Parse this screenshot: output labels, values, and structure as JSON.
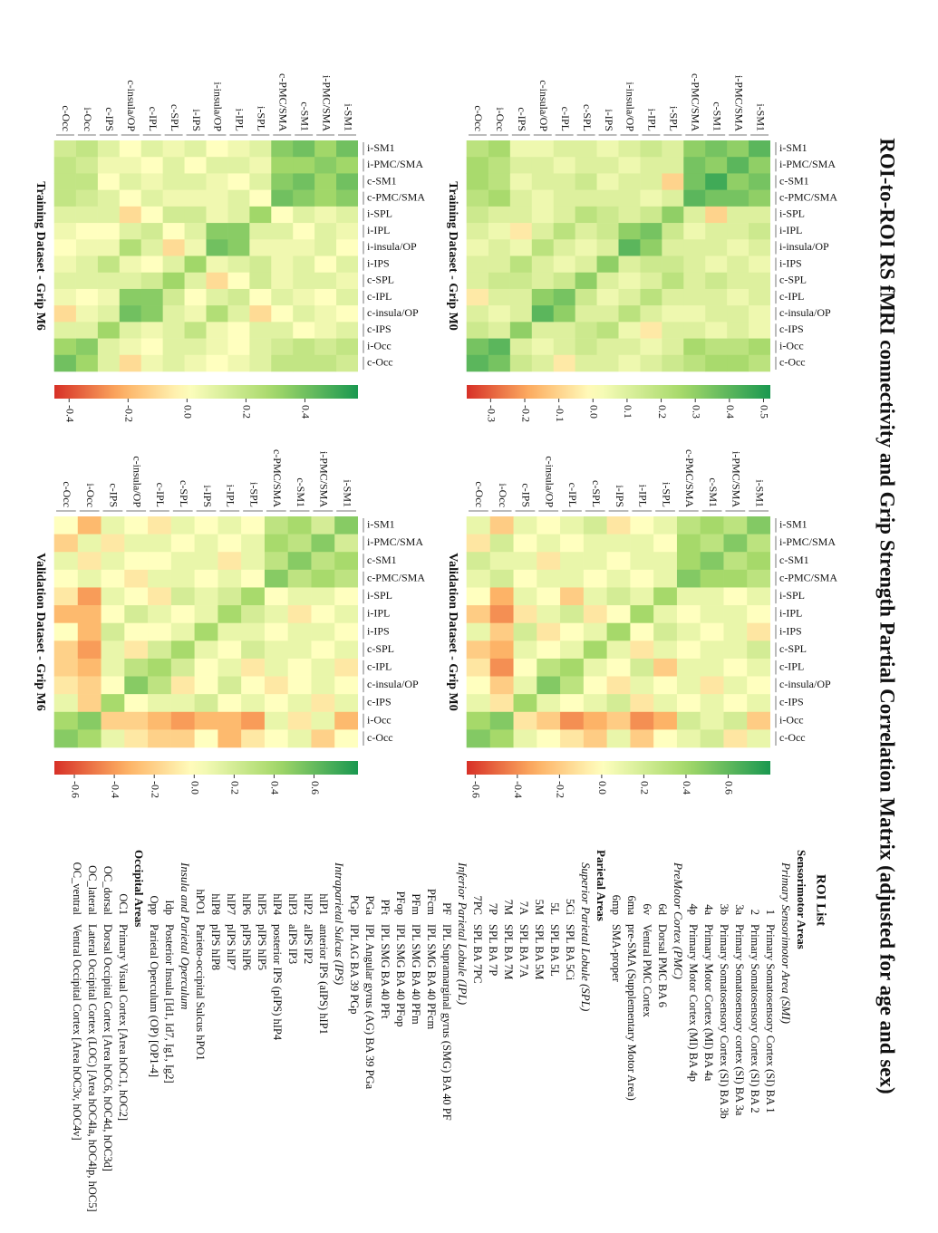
{
  "title": "ROI-to-ROI RS fMRI connectivity and Grip Strength Partial Correlation Matrix (adjusted for age and sex)",
  "chart_data": [
    {
      "type": "heatmap",
      "title": "Training Dataset - Grip M0",
      "labels": [
        "i-SM1",
        "i-PMC/SMA",
        "c-SM1",
        "c-PMC/SMA",
        "i-SPL",
        "i-IPL",
        "i-insula/OP",
        "i-IPS",
        "c-SPL",
        "c-IPL",
        "c-insula/OP",
        "c-IPS",
        "i-Occ",
        "c-Occ"
      ],
      "values": [
        [
          0.4,
          0.3,
          0.35,
          0.3,
          0.1,
          0.15,
          0.1,
          0.05,
          0.1,
          0.1,
          0.05,
          0.05,
          0.25,
          0.2
        ],
        [
          0.3,
          0.4,
          0.3,
          0.35,
          0.1,
          0.1,
          0.05,
          0.1,
          0.1,
          0.05,
          0.1,
          0.1,
          0.2,
          0.25
        ],
        [
          0.35,
          0.3,
          0.45,
          0.35,
          -0.1,
          0.1,
          0.1,
          0.05,
          0.15,
          0.1,
          0.1,
          0.05,
          0.2,
          0.25
        ],
        [
          0.3,
          0.35,
          0.35,
          0.4,
          0.1,
          0.05,
          0.1,
          0.1,
          0.1,
          0.1,
          0.05,
          0.1,
          0.25,
          0.2
        ],
        [
          0.1,
          0.1,
          -0.1,
          0.1,
          0.3,
          0.15,
          0.1,
          0.15,
          0.2,
          0.1,
          0.05,
          0.1,
          0.1,
          0.15
        ],
        [
          0.15,
          0.1,
          0.1,
          0.05,
          0.15,
          0.35,
          0.3,
          0.15,
          0.1,
          0.2,
          0.1,
          -0.05,
          0.05,
          0.1
        ],
        [
          0.1,
          0.05,
          0.1,
          0.1,
          0.1,
          0.3,
          0.4,
          0.1,
          0.05,
          0.1,
          0.2,
          0.05,
          0.1,
          0.05
        ],
        [
          0.05,
          0.1,
          0.05,
          0.1,
          0.15,
          0.15,
          0.1,
          0.3,
          0.1,
          0.05,
          0.1,
          0.2,
          0.1,
          0.1
        ],
        [
          0.1,
          0.1,
          0.15,
          0.1,
          0.2,
          0.1,
          0.05,
          0.1,
          0.3,
          0.15,
          0.1,
          0.15,
          0.15,
          0.1
        ],
        [
          0.1,
          0.05,
          0.1,
          0.1,
          0.1,
          0.2,
          0.1,
          0.05,
          0.15,
          0.35,
          0.3,
          0.1,
          0.1,
          -0.05
        ],
        [
          0.05,
          0.1,
          0.1,
          0.05,
          0.05,
          0.1,
          0.2,
          0.1,
          0.1,
          0.3,
          0.4,
          0.1,
          0.05,
          0.1
        ],
        [
          0.05,
          0.1,
          0.05,
          0.1,
          0.1,
          -0.05,
          0.05,
          0.2,
          0.15,
          0.1,
          0.1,
          0.3,
          0.1,
          0.15
        ],
        [
          0.25,
          0.2,
          0.2,
          0.25,
          0.1,
          0.05,
          0.1,
          0.1,
          0.15,
          0.1,
          0.05,
          0.1,
          0.4,
          0.35
        ],
        [
          0.2,
          0.25,
          0.25,
          0.2,
          0.15,
          0.1,
          0.05,
          0.1,
          0.1,
          -0.05,
          0.1,
          0.15,
          0.35,
          0.4
        ]
      ],
      "clim": [
        -0.37,
        0.52
      ],
      "cticks": [
        0.5,
        0.4,
        0.3,
        0.2,
        0.1,
        {
          "value": 0,
          "label": "0.0"
        },
        -0.1,
        -0.2,
        -0.3
      ]
    },
    {
      "type": "heatmap",
      "title": "Training Dataset - Grip M6",
      "labels": [
        "i-SM1",
        "i-PMC/SMA",
        "c-SM1",
        "c-PMC/SMA",
        "i-SPL",
        "i-IPL",
        "i-insula/OP",
        "i-IPS",
        "c-SPL",
        "c-IPL",
        "c-insula/OP",
        "c-IPS",
        "i-Occ",
        "c-Occ"
      ],
      "values": [
        [
          0.4,
          0.3,
          0.4,
          0.35,
          0.1,
          0.05,
          0.0,
          0.1,
          0.05,
          0.1,
          0.0,
          0.1,
          0.2,
          0.15
        ],
        [
          0.3,
          0.35,
          0.3,
          0.3,
          0.05,
          0.1,
          0.1,
          0.0,
          0.1,
          0.0,
          0.05,
          0.05,
          0.15,
          0.2
        ],
        [
          0.4,
          0.3,
          0.4,
          0.35,
          0.1,
          0.0,
          0.05,
          0.1,
          0.1,
          0.05,
          0.1,
          0.0,
          0.2,
          0.2
        ],
        [
          0.35,
          0.3,
          0.35,
          0.4,
          0.0,
          0.1,
          0.05,
          0.05,
          0.05,
          0.1,
          0.0,
          0.1,
          0.15,
          0.2
        ],
        [
          0.1,
          0.05,
          0.1,
          0.0,
          0.3,
          0.1,
          0.05,
          0.15,
          0.15,
          0.0,
          -0.1,
          0.1,
          0.1,
          0.1
        ],
        [
          0.05,
          0.1,
          0.0,
          0.1,
          0.1,
          0.35,
          0.35,
          0.1,
          0.0,
          0.15,
          0.1,
          0.0,
          0.0,
          0.05
        ],
        [
          0.0,
          0.1,
          0.05,
          0.05,
          0.05,
          0.35,
          0.4,
          0.05,
          -0.1,
          0.1,
          0.25,
          0.05,
          0.05,
          0.0
        ],
        [
          0.1,
          0.0,
          0.1,
          0.05,
          0.15,
          0.1,
          0.05,
          0.3,
          0.1,
          0.0,
          0.05,
          0.2,
          0.1,
          0.05
        ],
        [
          0.05,
          0.1,
          0.1,
          0.05,
          0.15,
          0.0,
          -0.1,
          0.1,
          0.3,
          0.15,
          0.1,
          0.1,
          0.1,
          0.1
        ],
        [
          0.1,
          0.0,
          0.05,
          0.1,
          0.0,
          0.15,
          0.1,
          0.0,
          0.15,
          0.35,
          0.35,
          0.05,
          0.0,
          0.05
        ],
        [
          0.0,
          0.05,
          0.1,
          0.0,
          -0.1,
          0.1,
          0.25,
          0.05,
          0.1,
          0.35,
          0.4,
          0.1,
          0.05,
          -0.1
        ],
        [
          0.1,
          0.05,
          0.0,
          0.1,
          0.1,
          0.0,
          0.05,
          0.2,
          0.1,
          0.05,
          0.1,
          0.3,
          0.1,
          0.1
        ],
        [
          0.2,
          0.15,
          0.2,
          0.15,
          0.1,
          0.0,
          0.05,
          0.1,
          0.1,
          0.0,
          0.05,
          0.1,
          0.35,
          0.3
        ],
        [
          0.15,
          0.2,
          0.2,
          0.2,
          0.1,
          0.05,
          0.0,
          0.05,
          0.1,
          0.05,
          -0.1,
          0.1,
          0.3,
          0.4
        ]
      ],
      "clim": [
        -0.45,
        0.58
      ],
      "cticks": [
        0.4,
        0.2,
        {
          "value": 0,
          "label": "0.0"
        },
        -0.2,
        -0.4
      ]
    },
    {
      "type": "heatmap",
      "title": "Validation Dataset - Grip M0",
      "labels": [
        "i-SM1",
        "i-PMC/SMA",
        "c-SM1",
        "c-PMC/SMA",
        "i-SPL",
        "i-IPL",
        "i-IPS",
        "c-SPL",
        "c-IPL",
        "c-insula/OP",
        "c-IPS",
        "i-Occ",
        "c-Occ"
      ],
      "values": [
        [
          0.5,
          0.3,
          0.4,
          0.3,
          0.1,
          0.0,
          -0.1,
          0.2,
          0.1,
          0.0,
          0.1,
          -0.2,
          0.1
        ],
        [
          0.3,
          0.5,
          0.3,
          0.4,
          0.0,
          0.1,
          0.1,
          0.1,
          0.0,
          0.1,
          0.0,
          0.2,
          -0.1
        ],
        [
          0.4,
          0.3,
          0.5,
          0.4,
          0.1,
          0.1,
          0.0,
          0.1,
          0.1,
          -0.1,
          0.1,
          0.1,
          0.2
        ],
        [
          0.3,
          0.4,
          0.4,
          0.5,
          0.1,
          0.0,
          0.1,
          0.0,
          0.1,
          0.1,
          0.0,
          0.2,
          0.1
        ],
        [
          0.1,
          0.0,
          0.1,
          0.1,
          0.4,
          0.1,
          0.2,
          0.1,
          -0.2,
          0.0,
          0.1,
          -0.3,
          0.0
        ],
        [
          0.0,
          0.1,
          0.1,
          0.0,
          0.1,
          0.4,
          0.0,
          -0.1,
          0.2,
          0.1,
          -0.1,
          -0.4,
          -0.2
        ],
        [
          -0.1,
          0.1,
          0.0,
          0.1,
          0.2,
          0.0,
          0.4,
          0.1,
          0.0,
          -0.1,
          0.2,
          -0.2,
          0.1
        ],
        [
          0.2,
          0.1,
          0.1,
          0.0,
          0.1,
          -0.1,
          0.1,
          0.4,
          0.1,
          0.0,
          0.1,
          -0.3,
          -0.2
        ],
        [
          0.1,
          0.0,
          0.1,
          0.1,
          -0.2,
          0.2,
          0.0,
          0.1,
          0.4,
          0.3,
          0.0,
          -0.4,
          -0.1
        ],
        [
          0.0,
          0.1,
          -0.1,
          0.1,
          0.0,
          0.1,
          -0.1,
          0.0,
          0.3,
          0.5,
          0.1,
          -0.2,
          0.0
        ],
        [
          0.1,
          0.0,
          0.1,
          0.0,
          0.1,
          -0.1,
          0.2,
          0.1,
          0.0,
          0.1,
          0.4,
          -0.1,
          0.1
        ],
        [
          -0.2,
          0.2,
          0.1,
          0.2,
          -0.3,
          -0.4,
          -0.2,
          -0.3,
          -0.4,
          -0.2,
          -0.1,
          0.5,
          0.4
        ],
        [
          0.1,
          -0.1,
          0.2,
          0.1,
          0.0,
          -0.2,
          0.1,
          -0.2,
          -0.1,
          0.0,
          0.1,
          0.4,
          0.5
        ]
      ],
      "clim": [
        -0.64,
        0.8
      ],
      "cticks": [
        0.6,
        0.4,
        0.2,
        {
          "value": 0,
          "label": "0.0"
        },
        -0.2,
        -0.4,
        -0.6
      ]
    },
    {
      "type": "heatmap",
      "title": "Validation Dataset - Grip M6",
      "labels": [
        "i-SM1",
        "i-PMC/SMA",
        "c-SM1",
        "c-PMC/SMA",
        "i-SPL",
        "i-IPL",
        "i-IPS",
        "c-SPL",
        "c-IPL",
        "c-insula/OP",
        "c-IPS",
        "i-Occ",
        "c-Occ"
      ],
      "values": [
        [
          0.5,
          0.2,
          0.4,
          0.3,
          0.0,
          0.1,
          0.0,
          0.1,
          -0.1,
          0.0,
          0.1,
          -0.3,
          0.0
        ],
        [
          0.2,
          0.5,
          0.3,
          0.4,
          0.1,
          0.0,
          0.1,
          0.0,
          0.1,
          0.1,
          -0.1,
          0.1,
          -0.2
        ],
        [
          0.4,
          0.3,
          0.5,
          0.3,
          0.1,
          -0.1,
          0.1,
          0.1,
          0.0,
          0.0,
          0.1,
          -0.1,
          0.1
        ],
        [
          0.3,
          0.4,
          0.3,
          0.5,
          0.0,
          0.1,
          0.0,
          0.1,
          0.1,
          -0.1,
          0.0,
          0.1,
          0.0
        ],
        [
          0.0,
          0.1,
          0.1,
          0.0,
          0.4,
          0.2,
          0.1,
          0.2,
          -0.1,
          0.0,
          0.1,
          -0.4,
          -0.1
        ],
        [
          0.1,
          0.0,
          -0.1,
          0.1,
          0.2,
          0.4,
          0.1,
          0.0,
          0.1,
          0.2,
          0.0,
          -0.3,
          -0.3
        ],
        [
          0.0,
          0.1,
          0.1,
          0.0,
          0.1,
          0.1,
          0.4,
          0.1,
          0.0,
          0.0,
          0.2,
          -0.3,
          0.0
        ],
        [
          0.1,
          0.0,
          0.1,
          0.1,
          0.2,
          0.0,
          0.1,
          0.4,
          0.2,
          -0.1,
          0.1,
          -0.4,
          -0.2
        ],
        [
          -0.1,
          0.1,
          0.0,
          0.1,
          -0.1,
          0.1,
          0.0,
          0.2,
          0.4,
          0.3,
          0.1,
          -0.3,
          -0.2
        ],
        [
          0.0,
          0.1,
          0.0,
          -0.1,
          0.0,
          0.2,
          0.0,
          -0.1,
          0.3,
          0.5,
          0.0,
          -0.2,
          -0.1
        ],
        [
          0.1,
          -0.1,
          0.1,
          0.0,
          0.1,
          0.0,
          0.2,
          0.1,
          0.1,
          0.0,
          0.4,
          -0.2,
          0.1
        ],
        [
          -0.3,
          0.1,
          -0.1,
          0.1,
          -0.4,
          -0.3,
          -0.3,
          -0.4,
          -0.3,
          -0.2,
          -0.2,
          0.5,
          0.4
        ],
        [
          0.0,
          -0.2,
          0.1,
          0.0,
          -0.1,
          -0.3,
          0.0,
          -0.2,
          -0.2,
          -0.1,
          0.1,
          0.4,
          0.5
        ]
      ],
      "clim": [
        -0.7,
        0.82
      ],
      "cticks": [
        0.6,
        0.4,
        0.2,
        {
          "value": 0,
          "label": "0.0"
        },
        -0.2,
        -0.4,
        -0.6
      ]
    }
  ],
  "roi_list": {
    "title": "ROI List",
    "sections": [
      {
        "name": "Sensorimotor Areas",
        "groups": [
          {
            "name": "Primary Sensorimotor Area (SMI)",
            "items": [
              [
                "1",
                "Primary Somatosensory Cortex (SI) BA 1"
              ],
              [
                "2",
                "Primary Somatosensory Cortex (SI) BA 2"
              ],
              [
                "3a",
                "Primary Somatosensory cortex (SI) BA 3a"
              ],
              [
                "3b",
                "Primary Somatosensory Cortex (SI) BA 3b"
              ],
              [
                "4a",
                "Primary Motor Cortex (MI) BA 4a"
              ],
              [
                "4p",
                "Primary Motor Cortex (MI) BA 4p"
              ]
            ]
          },
          {
            "name": "PreMotor Cortex (PMC)",
            "items": [
              [
                "6d",
                "Dorsal PMC BA 6"
              ],
              [
                "6v",
                "Ventral PMC Cortex"
              ],
              [
                "6ma",
                "pre-SMA (Supplementary Motor Area)"
              ],
              [
                "6mp",
                "SMA-proper"
              ]
            ]
          }
        ]
      },
      {
        "name": "Parietal Areas",
        "groups": [
          {
            "name": "Superior Parietal Lobule (SPL)",
            "items": [
              [
                "5Ci",
                "SPL BA 5Ci"
              ],
              [
                "5L",
                "SPL BA 5L"
              ],
              [
                "5M",
                "SPL BA 5M"
              ],
              [
                "7A",
                "SPL BA 7A"
              ],
              [
                "7M",
                "SPL BA 7M"
              ],
              [
                "7P",
                "SPL BA 7P"
              ],
              [
                "7PC",
                "SPL BA 7PC"
              ]
            ]
          },
          {
            "name": "Inferior Parietal Lobule (IPL)",
            "items": [
              [
                "PF",
                "IPL Supramarginal gyrus (SMG) BA 40 PF"
              ],
              [
                "PFcm",
                "IPL SMG BA 40 PFcm"
              ],
              [
                "PFm",
                "IPL SMG BA 40 PFm"
              ],
              [
                "PFop",
                "IPL SMG BA 40 PFop"
              ],
              [
                "PFt",
                "IPL SMG BA 40 PFt"
              ],
              [
                "PGa",
                "IPL Angular gyrus (AG) BA 39 PGa"
              ],
              [
                "PGp",
                "IPL AG BA 39 PGp"
              ]
            ]
          },
          {
            "name": "Intraparietal Sulcus (IPS)",
            "items": [
              [
                "hIP1",
                "anterior IPS (aIPS) hIP1"
              ],
              [
                "hIP2",
                "aIPS IP2"
              ],
              [
                "hIP3",
                "aIPS IP3"
              ],
              [
                "hIP4",
                "posterior IPS (pIPS) hIP4"
              ],
              [
                "hIP5",
                "pIPS hIP5"
              ],
              [
                "hIP6",
                "pIPS hIP6"
              ],
              [
                "hIP7",
                "pIPS hIP7"
              ],
              [
                "hIP8",
                "pIPS hIP8"
              ],
              [
                "hPO1",
                "Parieto-occipital Sulcus hPO1"
              ]
            ]
          },
          {
            "name": "Insula and Parietal Operculum",
            "items": [
              [
                "Idp",
                "Posterior Insula [Id1, Id7, Ig1, Ig2]"
              ],
              [
                "Opp",
                "Parietal Operculum (OP) [OP1-4]"
              ]
            ]
          }
        ]
      },
      {
        "name": "Occipital Areas",
        "groups": [
          {
            "items": [
              [
                "OC1",
                "Primary Visual Cortex [Area hOC1, hOC2]"
              ],
              [
                "OC_dorsal",
                "Dorsal Occipital Cortex [Area hOC6, hOC4d, hOC3d]"
              ],
              [
                "OC_lateral",
                "Lateral Occipital Cortex (LOC) [Area hOC4la, hOC4lp, hOC5]"
              ],
              [
                "OC_ventral",
                "Ventral Occipital Cortex [Area hOC3v, hOC4v]"
              ]
            ]
          }
        ]
      }
    ]
  }
}
